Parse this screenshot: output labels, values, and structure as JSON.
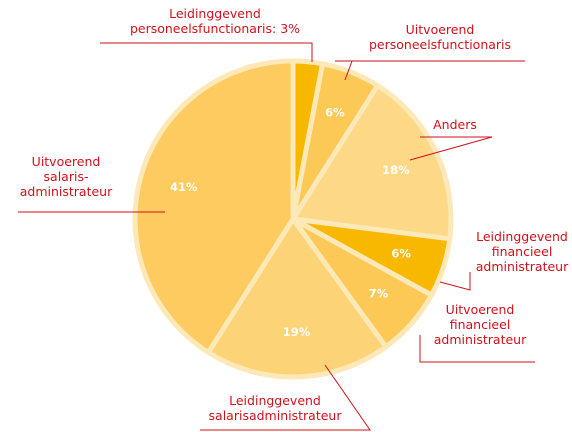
{
  "chart_data": {
    "type": "pie",
    "categories": [
      "Leidinggevend\npersoneelsfunctionaris: 3%",
      "Uitvoerend\npersoneelsfunctionaris",
      "Anders",
      "Leidinggevend\nfinancieel\nadministrateur",
      "Uitvoerend\nfinancieel\nadministrateur",
      "Leidinggevend\nsalarisadministrateur",
      "Uitvoerend\nsalaris-\nadministrateur"
    ],
    "values": [
      3,
      6,
      18,
      6,
      7,
      19,
      41
    ],
    "value_labels": [
      null,
      "6%",
      "18%",
      "6%",
      "7%",
      "19%",
      "41%"
    ],
    "colors": [
      "#f9b800",
      "#fcc957",
      "#fdd887",
      "#f9b800",
      "#fcc957",
      "#fdd377",
      "#fdcb5f"
    ]
  }
}
